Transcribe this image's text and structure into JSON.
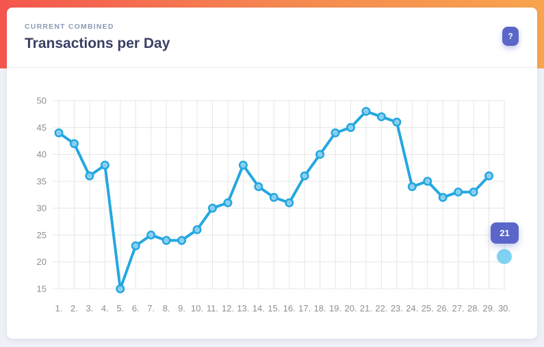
{
  "header": {
    "subtitle": "CURRENT COMBINED",
    "title": "Transactions per Day",
    "help_label": "?"
  },
  "tooltip": {
    "value": "21"
  },
  "colors": {
    "gradient_left": "#f4564e",
    "gradient_right": "#f8a44e",
    "page_bg": "#eef0f7",
    "card_bg": "#ffffff",
    "line": "#24a7e0",
    "point_fill": "#8fd2f1",
    "highlight_fill": "#7fd2f2",
    "tooltip_bg": "#5a66c9",
    "grid": "#e5e5e5",
    "axis_text": "#8e8e8e",
    "subtitle_text": "#8a9bb2",
    "title_text": "#3a3f63"
  },
  "chart_data": {
    "type": "line",
    "title": "Transactions per Day",
    "categories": [
      "1.",
      "2.",
      "3.",
      "4.",
      "5.",
      "6.",
      "7.",
      "8.",
      "9.",
      "10.",
      "11.",
      "12.",
      "13.",
      "14.",
      "15.",
      "16.",
      "17.",
      "18.",
      "19.",
      "20.",
      "21.",
      "22.",
      "23.",
      "24.",
      "25.",
      "26.",
      "27.",
      "28.",
      "29.",
      "30."
    ],
    "series": [
      {
        "name": "Transactions per Day",
        "values": [
          44,
          42,
          36,
          38,
          15,
          23,
          25,
          24,
          24,
          26,
          30,
          31,
          38,
          34,
          32,
          31,
          36,
          40,
          44,
          45,
          48,
          47,
          46,
          34,
          35,
          32,
          33,
          33,
          36,
          null
        ]
      }
    ],
    "highlight_point": {
      "category": "30.",
      "value": 21,
      "tooltip": "21"
    },
    "xlabel": "",
    "ylabel": "",
    "ylim": [
      15,
      50
    ],
    "yticks": [
      15,
      20,
      25,
      30,
      35,
      40,
      45,
      50
    ],
    "grid": true,
    "legend": false
  }
}
